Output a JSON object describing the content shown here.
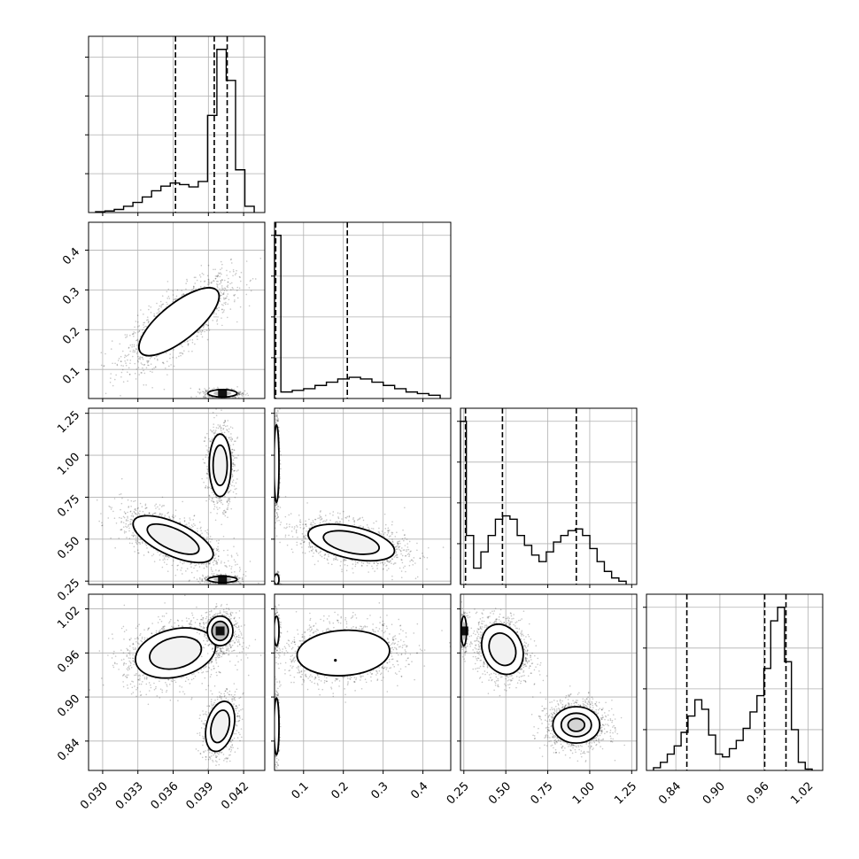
{
  "chart_data": {
    "type": "corner",
    "title": "",
    "grid": true,
    "params": [
      {
        "ticks": [
          "0.030",
          "0.033",
          "0.036",
          "0.039",
          "0.042"
        ],
        "range": [
          0.0288,
          0.0438
        ],
        "quantiles": [
          0.0362,
          0.0395,
          0.0406
        ],
        "hist": [
          0.01,
          0.02,
          0.04,
          0.08,
          0.13,
          0.2,
          0.28,
          0.34,
          0.38,
          0.36,
          0.33,
          0.4,
          1.25,
          2.1,
          1.7,
          0.55,
          0.08
        ]
      },
      {
        "ticks": [
          "0.1",
          "0.2",
          "0.3",
          "0.4"
        ],
        "range": [
          0.027,
          0.47
        ],
        "quantiles": [
          0.03,
          0.21
        ],
        "hist": [
          0.04,
          0.05,
          0.06,
          0.08,
          0.1,
          0.12,
          0.13,
          0.12,
          0.1,
          0.08,
          0.06,
          0.04,
          0.03,
          0.02
        ],
        "spike": {
          "x": [
            0.027,
            0.043
          ],
          "value": 1.0
        }
      },
      {
        "ticks": [
          "0.25",
          "0.50",
          "0.75",
          "1.00",
          "1.25"
        ],
        "range": [
          0.23,
          1.28
        ],
        "quantiles": [
          0.26,
          0.48,
          0.92
        ],
        "hist": [
          0.3,
          0.1,
          0.2,
          0.3,
          0.4,
          0.42,
          0.4,
          0.3,
          0.24,
          0.18,
          0.14,
          0.2,
          0.26,
          0.3,
          0.33,
          0.34,
          0.3,
          0.22,
          0.14,
          0.08,
          0.04,
          0.02
        ],
        "spike": {
          "x": [
            0.23,
            0.265
          ],
          "value": 1.0
        }
      },
      {
        "ticks": [
          "0.84",
          "0.90",
          "0.96",
          "1.02"
        ],
        "range": [
          0.8,
          1.04
        ],
        "quantiles": [
          0.855,
          0.961,
          0.99
        ],
        "hist": [
          0.02,
          0.06,
          0.12,
          0.18,
          0.28,
          0.4,
          0.52,
          0.45,
          0.26,
          0.12,
          0.1,
          0.16,
          0.22,
          0.31,
          0.43,
          0.55,
          0.75,
          1.1,
          1.2,
          0.8,
          0.3,
          0.06,
          0.01
        ]
      }
    ],
    "pairs": [
      {
        "row": 1,
        "col": 0,
        "blobs": [
          {
            "center": [
              0.0365,
              0.22
            ],
            "sigma": [
              0.0022,
              0.055
            ],
            "corr": 0.75,
            "n": 1600,
            "contours": 1
          },
          {
            "center": [
              0.0402,
              0.04
            ],
            "sigma": [
              0.0008,
              0.006
            ],
            "corr": 0,
            "n": 500,
            "contours": 1,
            "dark": true
          }
        ]
      },
      {
        "row": 2,
        "col": 0,
        "blobs": [
          {
            "center": [
              0.036,
              0.5
            ],
            "sigma": [
              0.0022,
              0.09
            ],
            "corr": -0.65,
            "n": 1300,
            "contours": 2
          },
          {
            "center": [
              0.04,
              0.94
            ],
            "sigma": [
              0.0006,
              0.12
            ],
            "corr": 0,
            "n": 800,
            "contours": 2
          },
          {
            "center": [
              0.0402,
              0.26
            ],
            "sigma": [
              0.0008,
              0.012
            ],
            "corr": 0,
            "n": 400,
            "contours": 1,
            "dark": true
          }
        ]
      },
      {
        "row": 2,
        "col": 1,
        "blobs": [
          {
            "center": [
              0.22,
              0.48
            ],
            "sigma": [
              0.07,
              0.07
            ],
            "corr": -0.45,
            "n": 1400,
            "contours": 2
          },
          {
            "center": [
              0.032,
              0.95
            ],
            "sigma": [
              0.004,
              0.15
            ],
            "corr": 0,
            "n": 500,
            "contours": 1
          },
          {
            "center": [
              0.032,
              0.26
            ],
            "sigma": [
              0.004,
              0.02
            ],
            "corr": 0,
            "n": 200,
            "contours": 1
          }
        ]
      },
      {
        "row": 3,
        "col": 0,
        "blobs": [
          {
            "center": [
              0.0362,
              0.96
            ],
            "sigma": [
              0.0022,
              0.022
            ],
            "corr": 0.25,
            "n": 1400,
            "contours": 2
          },
          {
            "center": [
              0.04,
              0.99
            ],
            "sigma": [
              0.0007,
              0.013
            ],
            "corr": 0,
            "n": 700,
            "contours": 2,
            "dark": true
          },
          {
            "center": [
              0.04,
              0.86
            ],
            "sigma": [
              0.0008,
              0.022
            ],
            "corr": 0.3,
            "n": 700,
            "contours": 2
          }
        ]
      },
      {
        "row": 3,
        "col": 1,
        "blobs": [
          {
            "center": [
              0.2,
              0.96
            ],
            "sigma": [
              0.075,
              0.02
            ],
            "corr": 0.1,
            "n": 1500,
            "contours": 1,
            "dot": [
              0.18,
              0.95
            ]
          },
          {
            "center": [
              0.032,
              0.99
            ],
            "sigma": [
              0.004,
              0.013
            ],
            "corr": 0,
            "n": 300,
            "contours": 1
          },
          {
            "center": [
              0.032,
              0.86
            ],
            "sigma": [
              0.004,
              0.025
            ],
            "corr": 0,
            "n": 300,
            "contours": 1
          }
        ]
      },
      {
        "row": 3,
        "col": 2,
        "blobs": [
          {
            "center": [
              0.48,
              0.965
            ],
            "sigma": [
              0.08,
              0.022
            ],
            "corr": -0.2,
            "n": 1300,
            "contours": 2
          },
          {
            "center": [
              0.92,
              0.862
            ],
            "sigma": [
              0.09,
              0.016
            ],
            "corr": 0,
            "n": 1300,
            "contours": 3
          },
          {
            "center": [
              0.25,
              0.99
            ],
            "sigma": [
              0.01,
              0.013
            ],
            "corr": 0,
            "n": 300,
            "contours": 1,
            "dark": true
          }
        ]
      }
    ]
  }
}
